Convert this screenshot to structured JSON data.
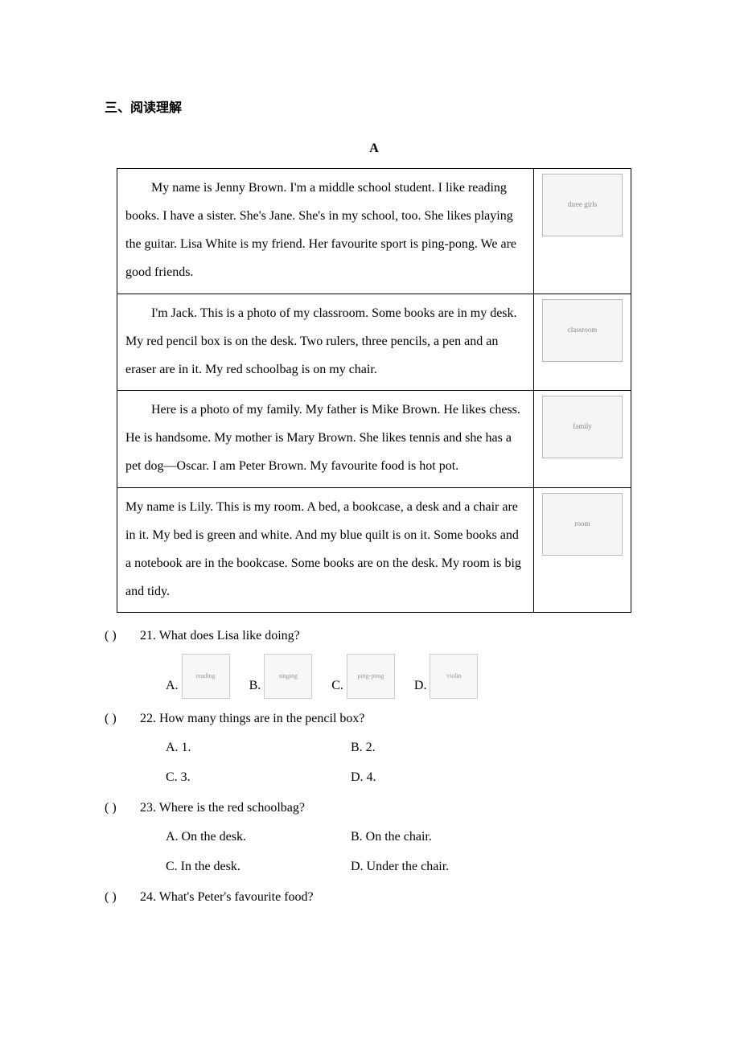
{
  "section_title": "三、阅读理解",
  "passage_label": "A",
  "passages": [
    {
      "text": "My name is Jenny Brown. I'm a middle school student. I like reading books. I have a sister. She's Jane. She's in my school, too. She likes playing   the guitar. Lisa White is my friend. Her favourite sport is ping-pong. We are good friends.",
      "image_alt": "three girls",
      "indent": true
    },
    {
      "text": "I'm Jack. This is a photo of my classroom. Some books are in my desk.   My red pencil box is on the desk. Two rulers, three pencils, a pen and an eraser are in it. My red schoolbag is on my chair.",
      "image_alt": "classroom",
      "indent": true
    },
    {
      "text": "Here is a photo of my family. My father is Mike Brown. He likes chess.   He is handsome. My mother is Mary Brown. She likes tennis and she has a pet dog—Oscar. I am Peter Brown. My favourite food is hot pot.",
      "image_alt": "family",
      "indent": true
    },
    {
      "text": "My name is Lily. This is my room. A bed, a bookcase, a desk and a chair are in it. My bed is green and white. And my blue quilt is on it. Some books and a notebook are in the bookcase. Some books are on the desk. My room is big and tidy.",
      "image_alt": "room",
      "indent": false
    }
  ],
  "q21": {
    "paren": "(    )",
    "number": "21.",
    "stem": "What does Lisa like doing?",
    "options": [
      {
        "label": "A.",
        "alt": "reading"
      },
      {
        "label": "B.",
        "alt": "singing"
      },
      {
        "label": "C.",
        "alt": "ping-pong"
      },
      {
        "label": "D.",
        "alt": "violin"
      }
    ]
  },
  "q22": {
    "paren": "(    )",
    "number": "22.",
    "stem": "How many things are in the pencil box?",
    "options": [
      "A. 1.",
      "B. 2.",
      "C. 3.",
      "D. 4."
    ]
  },
  "q23": {
    "paren": "(    )",
    "number": "23.",
    "stem": "Where is the red schoolbag?",
    "options": [
      "A. On the desk.",
      "B. On the chair.",
      "C. In the desk.",
      "D. Under the chair."
    ]
  },
  "q24": {
    "paren": "(    )",
    "number": "24.",
    "stem": "What's Peter's favourite food?"
  }
}
